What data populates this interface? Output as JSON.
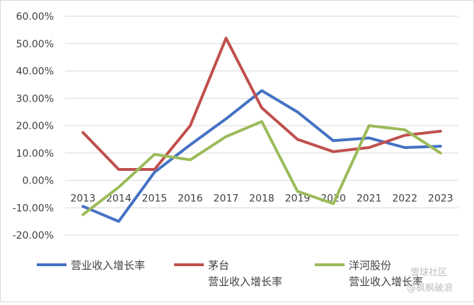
{
  "chart_data": {
    "type": "line",
    "x": [
      "2013",
      "2014",
      "2015",
      "2016",
      "2017",
      "2018",
      "2019",
      "2020",
      "2021",
      "2022",
      "2023"
    ],
    "ylim": [
      -20,
      60
    ],
    "yticks": [
      "60.00%",
      "50.00%",
      "40.00%",
      "30.00%",
      "20.00%",
      "10.00%",
      "0.00%",
      "-10.00%",
      "-20.00%"
    ],
    "grid": true,
    "legend_position": "bottom",
    "series": [
      {
        "name": "营业收入增长率",
        "color": "#4472C4",
        "values": [
          -9.5,
          -15.0,
          3.0,
          13.0,
          22.5,
          32.8,
          25.0,
          14.5,
          15.5,
          12.0,
          12.5
        ]
      },
      {
        "name": "茅台 营业收入增长率",
        "legend_lines": [
          "茅台",
          "营业收入增长率"
        ],
        "color": "#C0504D",
        "values": [
          17.5,
          4.0,
          4.0,
          20.0,
          52.0,
          26.5,
          15.0,
          10.5,
          12.0,
          16.5,
          18.0
        ]
      },
      {
        "name": "洋河股份 营业收入增长率",
        "legend_lines": [
          "洋河股份",
          "营业收入增长率"
        ],
        "color": "#9BBB59",
        "values": [
          -12.5,
          -2.5,
          9.5,
          7.5,
          16.0,
          21.5,
          -4.0,
          -8.5,
          20.0,
          18.5,
          10.0
        ]
      }
    ]
  },
  "watermark": {
    "line1": "雪球社区",
    "line2": "@枫枫破浪"
  }
}
